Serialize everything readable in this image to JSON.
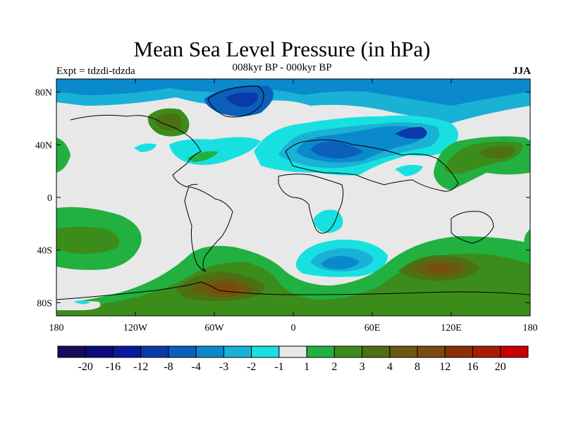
{
  "title": "Mean Sea Level Pressure (in hPa)",
  "subtitle": "008kyr BP - 000kyr BP",
  "experiment": "Expt = tdzdi-tdzda",
  "season": "JJA",
  "map": {
    "projection": "cylindrical-equidistant",
    "lon_range": [
      -180,
      180
    ],
    "lat_range": [
      -90,
      90
    ],
    "x_ticks": [
      {
        "lon": -180,
        "label": "180"
      },
      {
        "lon": -120,
        "label": "120W"
      },
      {
        "lon": -60,
        "label": "60W"
      },
      {
        "lon": 0,
        "label": "0"
      },
      {
        "lon": 60,
        "label": "60E"
      },
      {
        "lon": 120,
        "label": "120E"
      },
      {
        "lon": 180,
        "label": "180"
      }
    ],
    "y_ticks": [
      {
        "lat": 80,
        "label": "80N"
      },
      {
        "lat": 40,
        "label": "40N"
      },
      {
        "lat": 0,
        "label": "0"
      },
      {
        "lat": -40,
        "label": "40S"
      },
      {
        "lat": -80,
        "label": "80S"
      }
    ]
  },
  "colorbar": {
    "colors": [
      "#1a0a5a",
      "#0a0a7a",
      "#0a1a9a",
      "#0a3aaa",
      "#0a60bb",
      "#0a8acc",
      "#19b2d6",
      "#18e0e0",
      "#e8e8e8",
      "#22b040",
      "#3c8c1c",
      "#4e7014",
      "#6a5a10",
      "#7a4a0e",
      "#8a3008",
      "#a81c06",
      "#c80000"
    ],
    "labels": [
      "-20",
      "-16",
      "-12",
      "-8",
      "-4",
      "-3",
      "-2",
      "-1",
      "1",
      "2",
      "3",
      "4",
      "8",
      "12",
      "16",
      "20"
    ]
  },
  "fields": [
    {
      "kind": "neg",
      "lon": 25,
      "lat": 45,
      "level": 3
    },
    {
      "kind": "neg",
      "lon": 70,
      "lat": 48,
      "level": 3
    },
    {
      "kind": "neg",
      "lon": 80,
      "lat": 48,
      "level": 4
    },
    {
      "kind": "neg",
      "lon": 40,
      "lat": -45,
      "level": 2
    },
    {
      "kind": "neg",
      "lon": -30,
      "lat": 75,
      "level": 3
    },
    {
      "kind": "pos",
      "lon": -45,
      "lat": -60,
      "level": 4
    },
    {
      "kind": "pos",
      "lon": 115,
      "lat": -50,
      "level": 3
    },
    {
      "kind": "pos",
      "lon": 160,
      "lat": 35,
      "level": 3
    },
    {
      "kind": "pos",
      "lon": -160,
      "lat": -30,
      "level": 2
    },
    {
      "kind": "pos",
      "lon": -95,
      "lat": 60,
      "level": 2
    }
  ]
}
